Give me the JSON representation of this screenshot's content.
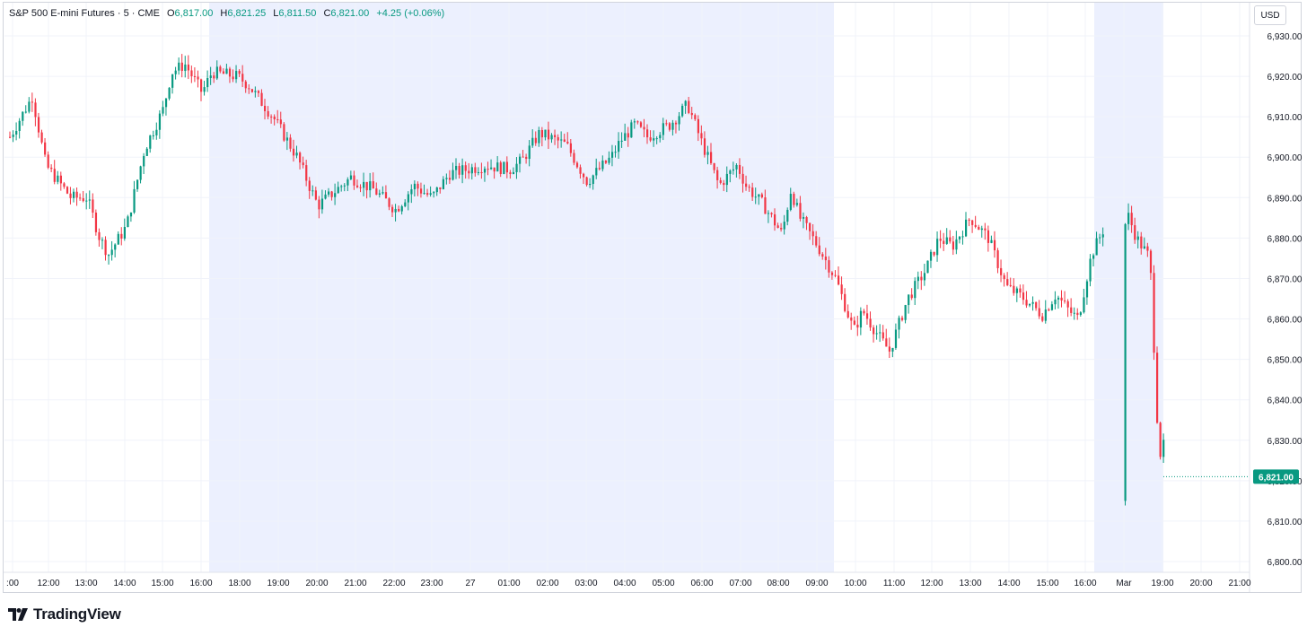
{
  "legend": {
    "symbol": "S&P 500 E-mini Futures · 5 · CME",
    "open_label": "O",
    "open": "6,817.00",
    "high_label": "H",
    "high": "6,821.25",
    "low_label": "L",
    "low": "6,811.50",
    "close_label": "C",
    "close": "6,821.00",
    "change": "+4.25 (+0.06%)"
  },
  "currency": "USD",
  "branding": {
    "logo_text": "TradingView"
  },
  "colors": {
    "up": "#089981",
    "down": "#f23645",
    "session_shade": "#ecf0fe",
    "grid": "#f0f3fa",
    "last_price_bg": "#089981"
  },
  "chart_data": {
    "type": "candlestick",
    "y_ticks": [
      "6,930.00",
      "6,920.00",
      "6,910.00",
      "6,900.00",
      "6,890.00",
      "6,880.00",
      "6,870.00",
      "6,860.00",
      "6,850.00",
      "6,840.00",
      "6,830.00",
      "6,820.00",
      "6,810.00",
      "6,800.00"
    ],
    "ylim": [
      6797,
      6936
    ],
    "x_ticks": [
      ":00",
      "12:00",
      "13:00",
      "14:00",
      "15:00",
      "16:00",
      "18:00",
      "19:00",
      "20:00",
      "21:00",
      "22:00",
      "23:00",
      "27",
      "01:00",
      "02:00",
      "03:00",
      "04:00",
      "05:00",
      "06:00",
      "07:00",
      "08:00",
      "09:00",
      "10:00",
      "11:00",
      "12:00",
      "13:00",
      "14:00",
      "15:00",
      "16:00",
      "Mar",
      "19:00",
      "20:00",
      "21:00"
    ],
    "last_price": "6,821.00",
    "last_price_value": 6821,
    "shaded_sessions": [
      [
        "16:00",
        "09:30"
      ],
      [
        "16:00",
        "19:00"
      ]
    ],
    "close_path": [
      {
        "t": "11:00",
        "v": 6905
      },
      {
        "t": "11:20",
        "v": 6915
      },
      {
        "t": "11:40",
        "v": 6898
      },
      {
        "t": "12:00",
        "v": 6890
      },
      {
        "t": "12:40",
        "v": 6890
      },
      {
        "t": "13:00",
        "v": 6880
      },
      {
        "t": "13:20",
        "v": 6876
      },
      {
        "t": "13:40",
        "v": 6883
      },
      {
        "t": "14:00",
        "v": 6902
      },
      {
        "t": "14:20",
        "v": 6912
      },
      {
        "t": "14:40",
        "v": 6921
      },
      {
        "t": "15:00",
        "v": 6923
      },
      {
        "t": "15:20",
        "v": 6916
      },
      {
        "t": "15:40",
        "v": 6921
      },
      {
        "t": "16:00",
        "v": 6920
      },
      {
        "t": "16:30",
        "v": 6918
      },
      {
        "t": "17:10",
        "v": 6910
      },
      {
        "t": "17:30",
        "v": 6900
      },
      {
        "t": "18:10",
        "v": 6888
      },
      {
        "t": "18:40",
        "v": 6895
      },
      {
        "t": "19:20",
        "v": 6892
      },
      {
        "t": "19:50",
        "v": 6887
      },
      {
        "t": "20:30",
        "v": 6893
      },
      {
        "t": "21:10",
        "v": 6890
      },
      {
        "t": "21:40",
        "v": 6896
      },
      {
        "t": "22:20",
        "v": 6898
      },
      {
        "t": "23:00",
        "v": 6897
      },
      {
        "t": "23:40",
        "v": 6899
      },
      {
        "t": "00:30",
        "v": 6906
      },
      {
        "t": "01:00",
        "v": 6903
      },
      {
        "t": "01:20",
        "v": 6894
      },
      {
        "t": "01:50",
        "v": 6900
      },
      {
        "t": "02:30",
        "v": 6904
      },
      {
        "t": "03:00",
        "v": 6908
      },
      {
        "t": "03:30",
        "v": 6905
      },
      {
        "t": "04:00",
        "v": 6908
      },
      {
        "t": "04:15",
        "v": 6913
      },
      {
        "t": "04:40",
        "v": 6904
      },
      {
        "t": "05:00",
        "v": 6893
      },
      {
        "t": "05:30",
        "v": 6898
      },
      {
        "t": "06:00",
        "v": 6893
      },
      {
        "t": "06:30",
        "v": 6888
      },
      {
        "t": "06:50",
        "v": 6881
      },
      {
        "t": "07:20",
        "v": 6892
      },
      {
        "t": "07:40",
        "v": 6885
      },
      {
        "t": "08:00",
        "v": 6878
      },
      {
        "t": "08:40",
        "v": 6870
      },
      {
        "t": "08:50",
        "v": 6857
      },
      {
        "t": "09:10",
        "v": 6862
      },
      {
        "t": "09:30",
        "v": 6855
      },
      {
        "t": "09:45",
        "v": 6852
      },
      {
        "t": "10:00",
        "v": 6865
      },
      {
        "t": "10:30",
        "v": 6872
      },
      {
        "t": "11:00",
        "v": 6880
      },
      {
        "t": "11:30",
        "v": 6878
      },
      {
        "t": "11:50",
        "v": 6885
      },
      {
        "t": "12:10",
        "v": 6880
      },
      {
        "t": "12:30",
        "v": 6868
      },
      {
        "t": "13:00",
        "v": 6865
      },
      {
        "t": "13:30",
        "v": 6861
      },
      {
        "t": "14:00",
        "v": 6866
      },
      {
        "t": "14:30",
        "v": 6862
      },
      {
        "t": "14:50",
        "v": 6860
      },
      {
        "t": "15:10",
        "v": 6876
      },
      {
        "t": "15:40",
        "v": 6883
      },
      {
        "t": "15:50",
        "v": 6876
      },
      {
        "t": "16:00",
        "v": 6886
      },
      {
        "t": "16:20",
        "v": 6880
      },
      {
        "t": "16:50",
        "v": 6875
      },
      {
        "t": "18:00",
        "v": 6826
      },
      {
        "t": "18:20",
        "v": 6829
      },
      {
        "t": "18:40",
        "v": 6822
      },
      {
        "t": "18:55",
        "v": 6816
      },
      {
        "t": "19:00",
        "v": 6821
      }
    ]
  }
}
